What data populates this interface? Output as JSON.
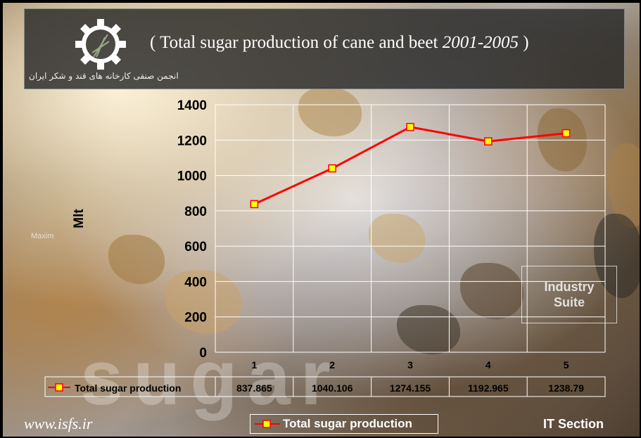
{
  "header": {
    "title_main": "( Total sugar production of cane and beet",
    "title_years": "2001-2005",
    "title_close": ")",
    "logo_text": "انجمن صنفی کارخانه های قند و شکر ایران"
  },
  "background": {
    "watermark": "sugar",
    "maxim_text": "Maxim",
    "industry_line1": "Industry",
    "industry_line2": "Suite"
  },
  "footer": {
    "url": "www.isfs.ir",
    "section": "IT Section",
    "legend_label": "Total sugar production"
  },
  "colors": {
    "line": "#ff0000",
    "marker_fill": "#ffff00",
    "grid": "#ffffff"
  },
  "chart_data": {
    "type": "line",
    "x": [
      "1",
      "2",
      "3",
      "4",
      "5"
    ],
    "series": [
      {
        "name": "Total sugar production",
        "values": [
          837.865,
          1040.106,
          1274.155,
          1192.965,
          1238.79
        ]
      }
    ],
    "value_labels": [
      "837.865",
      "1040.106",
      "1274.155",
      "1192.965",
      "1238.79"
    ],
    "ylabel": "Mlt",
    "ylim": [
      0,
      1400
    ],
    "yticks": [
      0,
      200,
      400,
      600,
      800,
      1000,
      1200,
      1400
    ],
    "grid": true,
    "data_table": true
  }
}
